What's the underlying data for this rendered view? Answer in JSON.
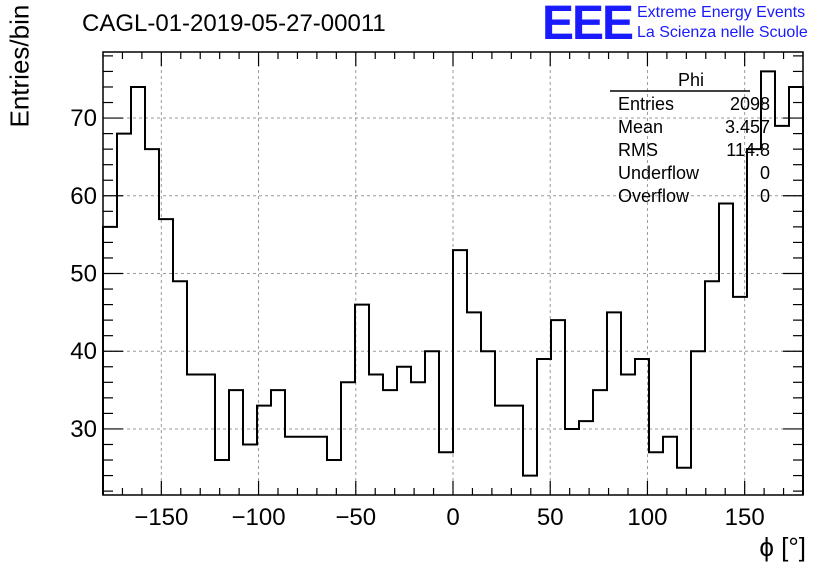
{
  "title": "CAGL-01-2019-05-27-00011",
  "logo": {
    "text": "EEE",
    "line1": "Extreme Energy Events",
    "line2": "La Scienza nelle Scuole",
    "color": "#1a1aff"
  },
  "stats": {
    "name": "Phi",
    "rows": [
      {
        "label": "Entries",
        "value": "2098"
      },
      {
        "label": "Mean",
        "value": "3.457"
      },
      {
        "label": "RMS",
        "value": "114.8"
      },
      {
        "label": "Underflow",
        "value": "0"
      },
      {
        "label": "Overflow",
        "value": "0"
      }
    ]
  },
  "chart_data": {
    "type": "bar",
    "style": "step-histogram",
    "xlabel": "ϕ [°]",
    "ylabel": "Entries/bin",
    "xlim": [
      -180,
      180
    ],
    "ylim": [
      21.5,
      78.5
    ],
    "bin_width": 7.2,
    "xticks": [
      -150,
      -100,
      -50,
      0,
      50,
      100,
      150
    ],
    "yticks": [
      30,
      40,
      50,
      60,
      70
    ],
    "grid": true,
    "values": [
      56,
      68,
      74,
      66,
      57,
      49,
      37,
      37,
      26,
      35,
      28,
      33,
      35,
      29,
      29,
      29,
      26,
      36,
      46,
      37,
      35,
      38,
      36,
      40,
      27,
      53,
      45,
      40,
      33,
      33,
      24,
      39,
      44,
      30,
      31,
      35,
      45,
      37,
      39,
      27,
      29,
      25,
      40,
      49,
      59,
      47,
      66,
      76,
      69,
      74
    ]
  }
}
